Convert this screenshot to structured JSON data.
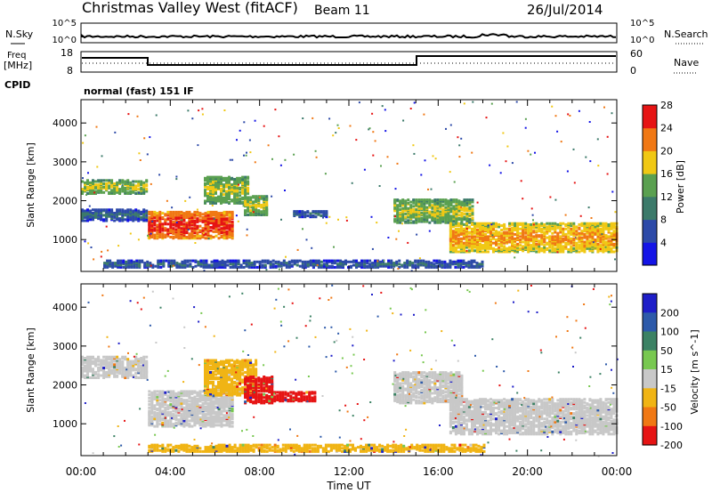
{
  "header": {
    "station": "Christmas Valley West (fitACF)",
    "beam": "Beam 11",
    "date": "26/Jul/2014"
  },
  "top_panels": {
    "nsky_label": "N.Sky",
    "nsearch_label": "N.Search",
    "nsky_ticks": [
      "10^5",
      "10^0"
    ],
    "nsearch_ticks": [
      "10^5",
      "10^0"
    ],
    "freq_label": "Freq",
    "freq_unit": "[MHz]",
    "freq_ticks": [
      "18",
      "8"
    ],
    "nave_label": "Nave",
    "nave_ticks": [
      "60",
      "0"
    ],
    "cpid_label": "CPID",
    "cpid_text": "normal (fast) 151 IF"
  },
  "chart_data": [
    {
      "type": "heatmap",
      "title": "",
      "xlabel": "Time UT",
      "ylabel": "Slant Range [km]",
      "x_ticks": [
        "00:00",
        "04:00",
        "08:00",
        "12:00",
        "16:00",
        "20:00",
        "00:00"
      ],
      "xlim_hours": [
        0,
        24
      ],
      "y_ticks": [
        1000,
        2000,
        3000,
        4000
      ],
      "ylim_km": [
        180,
        4600
      ],
      "colorbar": {
        "label": "Power [dB]",
        "ticks": [
          "4",
          "8",
          "12",
          "16",
          "20",
          "24",
          "28"
        ],
        "colors": [
          "#1414e6",
          "#2d4aa8",
          "#3c7a6a",
          "#5aa050",
          "#f0c814",
          "#f07814",
          "#e61414"
        ]
      },
      "regions": [
        {
          "name": "early-band-upper",
          "t": [
            0.0,
            3.0
          ],
          "range_km": [
            2150,
            2500
          ],
          "level": "mid"
        },
        {
          "name": "early-band-lower",
          "t": [
            0.0,
            3.0
          ],
          "range_km": [
            1450,
            1750
          ],
          "level": "low"
        },
        {
          "name": "morning-feature",
          "t": [
            3.0,
            6.8
          ],
          "range_km": [
            1000,
            1700
          ],
          "level": "high"
        },
        {
          "name": "morning-upper-arc",
          "t": [
            5.5,
            7.5
          ],
          "range_km": [
            1900,
            2600
          ],
          "level": "mid"
        },
        {
          "name": "patch-0800",
          "t": [
            7.3,
            8.3
          ],
          "range_km": [
            1600,
            2100
          ],
          "level": "mid"
        },
        {
          "name": "patch-1000",
          "t": [
            9.5,
            11.0
          ],
          "range_km": [
            1550,
            1700
          ],
          "level": "low"
        },
        {
          "name": "afternoon-arc",
          "t": [
            14.0,
            17.5
          ],
          "range_km": [
            1400,
            2000
          ],
          "level": "mid"
        },
        {
          "name": "evening-band",
          "t": [
            16.5,
            24.0
          ],
          "range_km": [
            650,
            1400
          ],
          "level": "mid-high"
        },
        {
          "name": "ground-scatter-low",
          "t": [
            1.0,
            18.0
          ],
          "range_km": [
            250,
            420
          ],
          "level": "low"
        }
      ]
    },
    {
      "type": "heatmap",
      "title": "",
      "xlabel": "Time UT",
      "ylabel": "Slant Range [km]",
      "x_ticks": [
        "00:00",
        "04:00",
        "08:00",
        "12:00",
        "16:00",
        "20:00",
        "00:00"
      ],
      "xlim_hours": [
        0,
        24
      ],
      "y_ticks": [
        1000,
        2000,
        3000,
        4000
      ],
      "ylim_km": [
        180,
        4600
      ],
      "colorbar": {
        "label": "Velocity [m s^-1]",
        "ticks": [
          "200",
          "100",
          "50",
          "15",
          "-15",
          "-50",
          "-100",
          "-200"
        ],
        "colors": [
          "#1e1ec8",
          "#2d5aaa",
          "#3c8264",
          "#78c850",
          "#c8c8c8",
          "#f0b414",
          "#f07814",
          "#e61414"
        ]
      },
      "regions": [
        {
          "name": "early-band-grey",
          "t": [
            0.0,
            3.0
          ],
          "range_km": [
            2150,
            2700
          ],
          "velocity": "ground-scatter"
        },
        {
          "name": "morning-grey",
          "t": [
            3.0,
            6.8
          ],
          "range_km": [
            900,
            1800
          ],
          "velocity": "ground-scatter"
        },
        {
          "name": "morning-orange-arc",
          "t": [
            5.5,
            7.8
          ],
          "range_km": [
            1700,
            2600
          ],
          "velocity": "-50"
        },
        {
          "name": "red-patch-0800",
          "t": [
            7.3,
            8.5
          ],
          "range_km": [
            1500,
            2200
          ],
          "velocity": "-200"
        },
        {
          "name": "red-tail",
          "t": [
            8.5,
            10.5
          ],
          "range_km": [
            1550,
            1800
          ],
          "velocity": "-200"
        },
        {
          "name": "afternoon-grey",
          "t": [
            14.0,
            17.0
          ],
          "range_km": [
            1500,
            2300
          ],
          "velocity": "ground-scatter"
        },
        {
          "name": "evening-grey",
          "t": [
            16.5,
            24.0
          ],
          "range_km": [
            700,
            1600
          ],
          "velocity": "ground-scatter"
        },
        {
          "name": "orange-floor",
          "t": [
            3.0,
            18.0
          ],
          "range_km": [
            250,
            420
          ],
          "velocity": "-50"
        }
      ]
    }
  ]
}
